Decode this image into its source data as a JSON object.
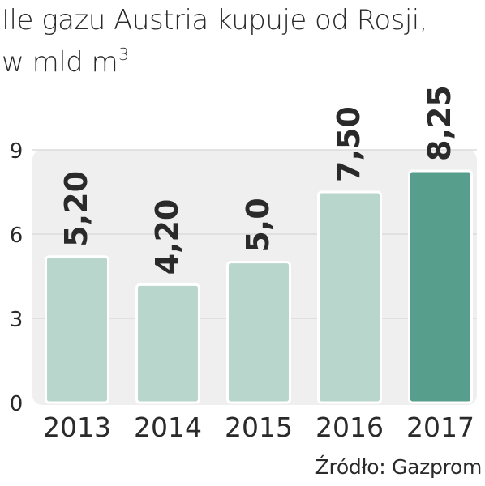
{
  "title": {
    "line1": "Ile gazu Austria kupuje od Rosji,",
    "line2_prefix": "w mld m",
    "line2_superscript": "3"
  },
  "source": "Źródło: Gazprom",
  "colors": {
    "bar_normal": "#b8d6cc",
    "bar_highlight": "#579e8c",
    "plot_background": "#efefef",
    "gridline": "#dcdcdc",
    "text": "#2a2a2a"
  },
  "chart_data": {
    "type": "bar",
    "title": "Ile gazu Austria kupuje od Rosji, w mld m3",
    "xlabel": "",
    "ylabel": "",
    "categories": [
      "2013",
      "2014",
      "2015",
      "2016",
      "2017"
    ],
    "values": [
      5.2,
      4.2,
      5.0,
      7.5,
      8.25
    ],
    "value_labels": [
      "5,20",
      "4,20",
      "5,0",
      "7,50",
      "8,25"
    ],
    "highlight_index": 4,
    "ylim": [
      0,
      9
    ],
    "yticks": [
      0,
      3,
      6,
      9
    ],
    "ytick_labels": [
      "0",
      "3",
      "6",
      "9"
    ],
    "grid": true,
    "legend": "none"
  }
}
